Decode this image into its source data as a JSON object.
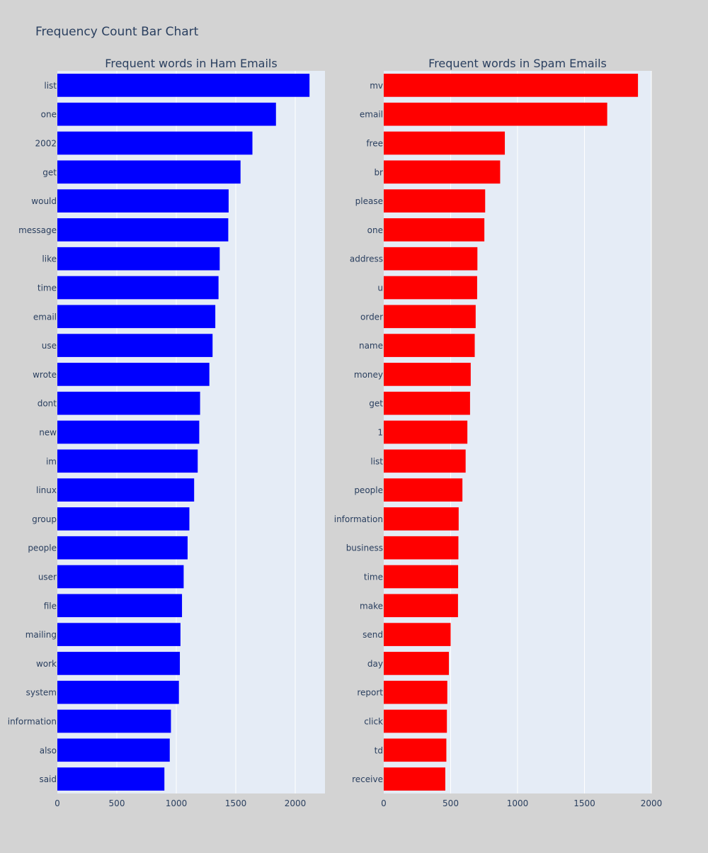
{
  "page_title": "Frequency Count Bar Chart",
  "colors": {
    "background": "#d3d3d3",
    "plot_bg": "#e5ecf6",
    "grid": "#ffffff",
    "text": "#2a3f5f",
    "ham": "#0000ff",
    "spam": "#ff0000"
  },
  "chart_data": [
    {
      "type": "bar",
      "orientation": "horizontal",
      "title": "Frequent words in Ham Emails",
      "xlabel": "",
      "ylabel": "",
      "xlim": [
        0,
        2250
      ],
      "xticks": [
        0,
        500,
        1000,
        1500,
        2000
      ],
      "xtick_labels": [
        "0",
        "500",
        "1000",
        "1500",
        "2000"
      ],
      "grid": true,
      "color": "#0000ff",
      "categories": [
        "list",
        "one",
        "2002",
        "get",
        "would",
        "message",
        "like",
        "time",
        "email",
        "use",
        "wrote",
        "dont",
        "new",
        "im",
        "linux",
        "group",
        "people",
        "user",
        "file",
        "mailing",
        "work",
        "system",
        "information",
        "also",
        "said"
      ],
      "values": [
        2120,
        1838,
        1640,
        1540,
        1440,
        1437,
        1365,
        1355,
        1328,
        1305,
        1278,
        1200,
        1193,
        1180,
        1150,
        1110,
        1095,
        1062,
        1048,
        1035,
        1030,
        1022,
        955,
        945,
        900
      ]
    },
    {
      "type": "bar",
      "orientation": "horizontal",
      "title": "Frequent words in Spam Emails",
      "xlabel": "",
      "ylabel": "",
      "xlim": [
        0,
        2000
      ],
      "xticks": [
        0,
        500,
        1000,
        1500,
        2000
      ],
      "xtick_labels": [
        "0",
        "500",
        "1000",
        "1500",
        "2000"
      ],
      "grid": true,
      "color": "#ff0000",
      "categories": [
        "mv",
        "email",
        "free",
        "br",
        "please",
        "one",
        "address",
        "u",
        "order",
        "name",
        "money",
        "get",
        "1",
        "list",
        "people",
        "information",
        "business",
        "time",
        "make",
        "send",
        "day",
        "report",
        "click",
        "td",
        "receive"
      ],
      "values": [
        1900,
        1670,
        905,
        870,
        758,
        752,
        700,
        698,
        687,
        680,
        650,
        645,
        625,
        612,
        588,
        560,
        558,
        556,
        555,
        500,
        487,
        475,
        472,
        468,
        460
      ]
    }
  ]
}
